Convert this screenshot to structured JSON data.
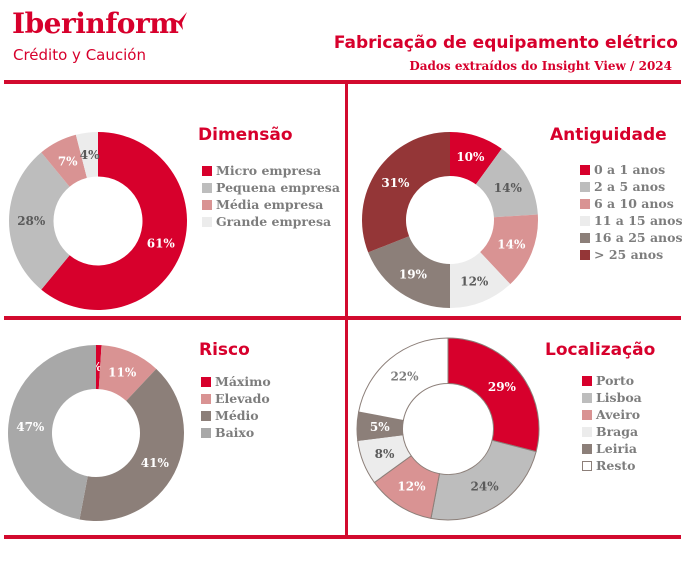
{
  "header": {
    "brand": "Iberinform",
    "brand_sub": "Crédito y Caución",
    "title": "Fabricação de equipamento elétrico",
    "subtitle": "Dados extraídos do Insight View / 2024",
    "accent_color": "#d7002c",
    "logo_icon": "bird-chevron-icon"
  },
  "chart_data": [
    {
      "type": "pie",
      "title": "Dimensão",
      "donut": true,
      "categories": [
        "Micro empresa",
        "Pequena empresa",
        "Média empresa",
        "Grande empresa"
      ],
      "values": [
        61,
        28,
        7,
        4
      ],
      "labels": [
        "61%",
        "28%",
        "7%",
        "4%"
      ],
      "colors": [
        "#d7002c",
        "#bdbdbd",
        "#d99393",
        "#ececec"
      ],
      "label_colors": [
        "#ffffff",
        "#5a5a5a",
        "#ffffff",
        "#5a5a5a"
      ],
      "legend": "right",
      "unit": "%"
    },
    {
      "type": "pie",
      "title": "Antiguidade",
      "donut": true,
      "categories": [
        "0 a 1 anos",
        "2 a 5 anos",
        "6 a 10 anos",
        "11 a 15 anos",
        "16 a 25 anos",
        "> 25 anos"
      ],
      "values": [
        10,
        14,
        14,
        12,
        19,
        31
      ],
      "labels": [
        "10%",
        "14%",
        "14%",
        "12%",
        "19%",
        "31%"
      ],
      "colors": [
        "#d7002c",
        "#bdbdbd",
        "#d99393",
        "#ececec",
        "#8c7f79",
        "#943637"
      ],
      "label_colors": [
        "#ffffff",
        "#5a5a5a",
        "#ffffff",
        "#5a5a5a",
        "#ffffff",
        "#ffffff"
      ],
      "legend": "right",
      "unit": "%"
    },
    {
      "type": "pie",
      "title": "Risco",
      "donut": true,
      "categories": [
        "Máximo",
        "Elevado",
        "Médio",
        "Baixo"
      ],
      "values": [
        1,
        11,
        41,
        47
      ],
      "labels": [
        "1%",
        "11%",
        "41%",
        "47%"
      ],
      "colors": [
        "#d7002c",
        "#d99393",
        "#8c7f79",
        "#a8a8a8"
      ],
      "label_colors": [
        "#ffffff",
        "#ffffff",
        "#ffffff",
        "#ffffff"
      ],
      "legend": "right",
      "unit": "%"
    },
    {
      "type": "pie",
      "title": "Localização",
      "donut": true,
      "categories": [
        "Porto",
        "Lisboa",
        "Aveiro",
        "Braga",
        "Leiria",
        "Resto"
      ],
      "values": [
        29,
        24,
        12,
        8,
        5,
        22
      ],
      "labels": [
        "29%",
        "24%",
        "12%",
        "8%",
        "5%",
        "22%"
      ],
      "colors": [
        "#d7002c",
        "#bdbdbd",
        "#d99393",
        "#ececec",
        "#8c7f79",
        "#ffffff"
      ],
      "label_colors": [
        "#ffffff",
        "#5a5a5a",
        "#ffffff",
        "#5a5a5a",
        "#ffffff",
        "#7d7d7d"
      ],
      "outline_color": "#8c7f79",
      "legend": "right",
      "unit": "%"
    }
  ]
}
